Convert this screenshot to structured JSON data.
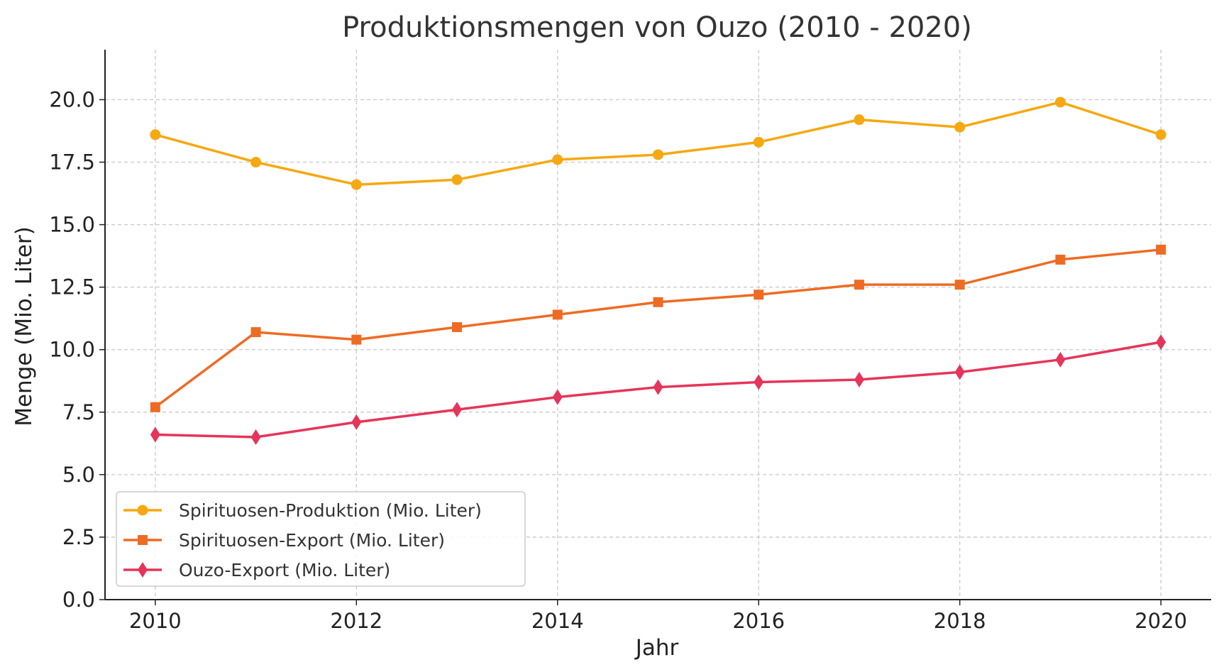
{
  "chart_data": {
    "type": "line",
    "title": "Produktionsmengen von Ouzo (2010 - 2020)",
    "xlabel": "Jahr",
    "ylabel": "Menge (Mio. Liter)",
    "x": [
      2010,
      2011,
      2012,
      2013,
      2014,
      2015,
      2016,
      2017,
      2018,
      2019,
      2020
    ],
    "xlim": [
      2009.5,
      2020.5
    ],
    "ylim": [
      0,
      22
    ],
    "x_ticks": [
      2010,
      2012,
      2014,
      2016,
      2018,
      2020
    ],
    "x_tick_labels": [
      "2010",
      "2012",
      "2014",
      "2016",
      "2018",
      "2020"
    ],
    "y_ticks": [
      0,
      2.5,
      5,
      7.5,
      10,
      12.5,
      15,
      17.5,
      20
    ],
    "y_tick_labels": [
      "0.0",
      "2.5",
      "5.0",
      "7.5",
      "10.0",
      "12.5",
      "15.0",
      "17.5",
      "20.0"
    ],
    "grid": true,
    "legend_position": "lower-left",
    "series": [
      {
        "name": "Spirituosen-Produktion (Mio. Liter)",
        "color": "#F5A811",
        "marker": "circle",
        "values": [
          18.6,
          17.5,
          16.6,
          16.8,
          17.6,
          17.8,
          18.3,
          19.2,
          18.9,
          19.9,
          18.6
        ]
      },
      {
        "name": "Spirituosen-Export (Mio. Liter)",
        "color": "#EE6B24",
        "marker": "square",
        "values": [
          7.7,
          10.7,
          10.4,
          10.9,
          11.4,
          11.9,
          12.2,
          12.6,
          12.6,
          13.6,
          14.0
        ]
      },
      {
        "name": "Ouzo-Export (Mio. Liter)",
        "color": "#E5355A",
        "marker": "diamond",
        "values": [
          6.6,
          6.5,
          7.1,
          7.6,
          8.1,
          8.5,
          8.7,
          8.8,
          9.1,
          9.6,
          10.3
        ]
      }
    ]
  }
}
